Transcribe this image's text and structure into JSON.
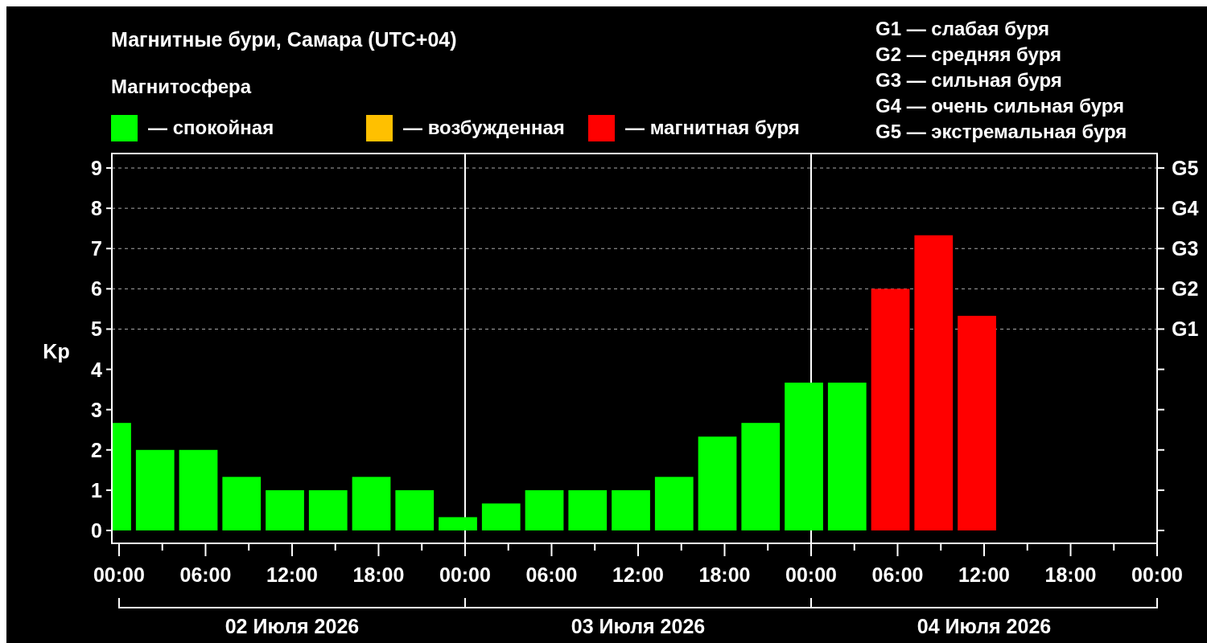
{
  "chart_data": {
    "type": "bar",
    "title": "Магнитные бури, Самара (UTC+04)",
    "ylabel": "Kp",
    "legend_title": "Магнитосфера",
    "legend": "top left",
    "x": [
      "2026-07-01T23:30",
      "2026-07-02T02:30",
      "2026-07-02T05:30",
      "2026-07-02T08:30",
      "2026-07-02T11:30",
      "2026-07-02T14:30",
      "2026-07-02T17:30",
      "2026-07-02T20:30",
      "2026-07-02T23:30",
      "2026-07-03T02:30",
      "2026-07-03T05:30",
      "2026-07-03T08:30",
      "2026-07-03T11:30",
      "2026-07-03T14:30",
      "2026-07-03T17:30",
      "2026-07-03T20:30",
      "2026-07-03T23:30",
      "2026-07-04T02:30",
      "2026-07-04T05:30",
      "2026-07-04T08:30",
      "2026-07-04T11:30"
    ],
    "series": [
      {
        "name": "— спокойная",
        "color": "#00ff00",
        "values": [
          2.67,
          2,
          2,
          1.33,
          1,
          1,
          1.33,
          1,
          0.33,
          0.67,
          1,
          1,
          1,
          1.33,
          2.33,
          2.67,
          3.67,
          3.67,
          null,
          null,
          null
        ]
      },
      {
        "name": "— возбужденная",
        "color": "#ffc000",
        "values": [
          null,
          null,
          null,
          null,
          null,
          null,
          null,
          null,
          null,
          null,
          null,
          null,
          null,
          null,
          null,
          null,
          null,
          null,
          null,
          null,
          null
        ]
      },
      {
        "name": "— магнитная буря",
        "color": "#ff0000",
        "values": [
          null,
          null,
          null,
          null,
          null,
          null,
          null,
          null,
          null,
          null,
          null,
          null,
          null,
          null,
          null,
          null,
          null,
          null,
          6,
          7.33,
          5.33
        ]
      }
    ],
    "xlim": [
      "2026-07-01T23:30",
      "2026-07-05T00:00"
    ],
    "xticks": [
      {
        "value": "2026-07-02T00:00",
        "label": "00:00"
      },
      {
        "value": "2026-07-02T03:00",
        "label": null
      },
      {
        "value": "2026-07-02T06:00",
        "label": "06:00"
      },
      {
        "value": "2026-07-02T09:00",
        "label": null
      },
      {
        "value": "2026-07-02T12:00",
        "label": "12:00"
      },
      {
        "value": "2026-07-02T15:00",
        "label": null
      },
      {
        "value": "2026-07-02T18:00",
        "label": "18:00"
      },
      {
        "value": "2026-07-02T21:00",
        "label": null
      },
      {
        "value": "2026-07-03T00:00",
        "label": "00:00"
      },
      {
        "value": "2026-07-03T03:00",
        "label": null
      },
      {
        "value": "2026-07-03T06:00",
        "label": "06:00"
      },
      {
        "value": "2026-07-03T09:00",
        "label": null
      },
      {
        "value": "2026-07-03T12:00",
        "label": "12:00"
      },
      {
        "value": "2026-07-03T15:00",
        "label": null
      },
      {
        "value": "2026-07-03T18:00",
        "label": "18:00"
      },
      {
        "value": "2026-07-03T21:00",
        "label": null
      },
      {
        "value": "2026-07-04T00:00",
        "label": "00:00"
      },
      {
        "value": "2026-07-04T03:00",
        "label": null
      },
      {
        "value": "2026-07-04T06:00",
        "label": "06:00"
      },
      {
        "value": "2026-07-04T09:00",
        "label": null
      },
      {
        "value": "2026-07-04T12:00",
        "label": "12:00"
      },
      {
        "value": "2026-07-04T15:00",
        "label": null
      },
      {
        "value": "2026-07-04T18:00",
        "label": "18:00"
      },
      {
        "value": "2026-07-04T21:00",
        "label": null
      },
      {
        "value": "2026-07-05T00:00",
        "label": "00:00"
      }
    ],
    "ylim": [
      -0.32,
      9.36
    ],
    "yticks": [
      0,
      1,
      2,
      3,
      4,
      5,
      6,
      7,
      8,
      9
    ],
    "ref_lines": [
      {
        "axis": "x",
        "value": "2026-07-03T00:00",
        "color": "#ffffff"
      },
      {
        "axis": "x",
        "value": "2026-07-04T00:00",
        "color": "#ffffff"
      },
      {
        "axis": "y",
        "value": 5,
        "label": "G1",
        "color": "#aaaaaa",
        "line_style": "dashed"
      },
      {
        "axis": "y",
        "value": 6,
        "label": "G2",
        "color": "#aaaaaa",
        "line_style": "dashed"
      },
      {
        "axis": "y",
        "value": 7,
        "label": "G3",
        "color": "#aaaaaa",
        "line_style": "dashed"
      },
      {
        "axis": "y",
        "value": 8,
        "label": "G4",
        "color": "#aaaaaa",
        "line_style": "dashed"
      },
      {
        "axis": "y",
        "value": 9,
        "label": "G5",
        "color": "#aaaaaa",
        "line_style": "dashed"
      }
    ],
    "annotations": [
      "02 Июля 2026",
      "03 Июля 2026",
      "04 Июля 2026",
      "G1 — слабая буря",
      "G2 — средняя буря",
      "G3 — сильная буря",
      "G4 — очень сильная буря",
      "G5 — экстремальная буря"
    ]
  }
}
